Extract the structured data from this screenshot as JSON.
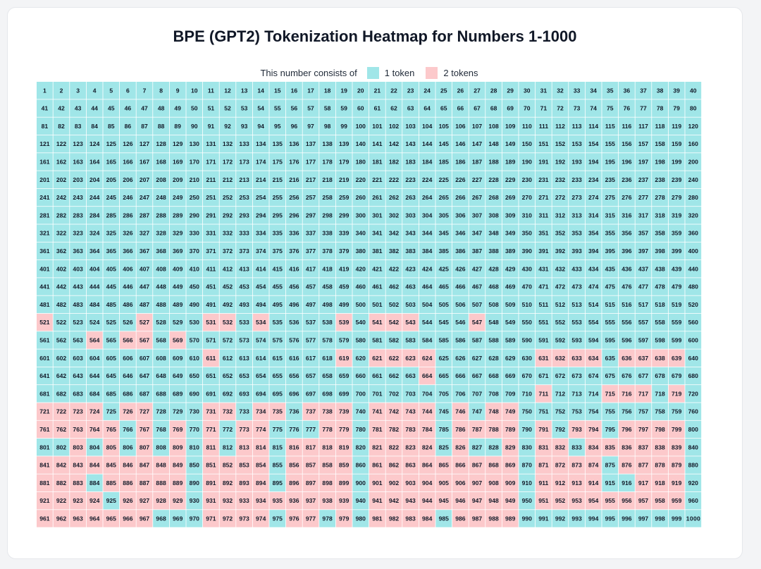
{
  "page": {
    "title": "BPE (GPT2) Tokenization Heatmap for Numbers 1-1000"
  },
  "legend": {
    "label": "This number consists of",
    "items": [
      {
        "label": "1 token",
        "color": "#a0e6e8"
      },
      {
        "label": "2 tokens",
        "color": "#fcc9cb"
      }
    ]
  },
  "chart_data": {
    "type": "heatmap",
    "title": "BPE (GPT2) Tokenization Heatmap for Numbers 1-1000",
    "range": [
      1,
      1000
    ],
    "columns": 40,
    "rows": 25,
    "colors": {
      "1": "#a0e6e8",
      "2": "#fcc9cb"
    },
    "two_token_numbers": [
      521,
      527,
      531,
      532,
      534,
      539,
      541,
      542,
      543,
      547,
      564,
      566,
      567,
      569,
      611,
      619,
      621,
      622,
      623,
      624,
      631,
      632,
      633,
      634,
      636,
      637,
      638,
      639,
      664,
      711,
      715,
      716,
      717,
      719,
      721,
      722,
      723,
      724,
      726,
      727,
      731,
      732,
      734,
      735,
      737,
      738,
      739,
      741,
      742,
      743,
      744,
      746,
      748,
      749,
      761,
      762,
      763,
      764,
      765,
      767,
      769,
      771,
      773,
      774,
      778,
      779,
      781,
      782,
      783,
      784,
      786,
      787,
      788,
      789,
      791,
      793,
      794,
      796,
      797,
      798,
      799,
      803,
      805,
      807,
      809,
      811,
      813,
      814,
      816,
      817,
      818,
      819,
      821,
      822,
      823,
      824,
      826,
      829,
      831,
      832,
      834,
      835,
      836,
      837,
      838,
      839,
      841,
      842,
      843,
      844,
      845,
      846,
      847,
      848,
      849,
      851,
      852,
      853,
      854,
      856,
      857,
      858,
      859,
      861,
      862,
      863,
      864,
      865,
      866,
      867,
      868,
      869,
      871,
      872,
      873,
      874,
      876,
      877,
      878,
      879,
      881,
      882,
      883,
      885,
      886,
      887,
      888,
      889,
      891,
      892,
      893,
      894,
      896,
      897,
      898,
      899,
      901,
      902,
      903,
      904,
      905,
      906,
      907,
      908,
      909,
      911,
      912,
      913,
      914,
      917,
      918,
      919,
      921,
      922,
      923,
      924,
      926,
      927,
      928,
      929,
      931,
      932,
      933,
      934,
      935,
      936,
      937,
      938,
      939,
      941,
      942,
      943,
      944,
      945,
      946,
      947,
      948,
      949,
      951,
      952,
      953,
      954,
      955,
      956,
      957,
      958,
      959,
      961,
      962,
      963,
      964,
      965,
      966,
      967,
      971,
      972,
      973,
      974,
      976,
      977,
      979,
      981,
      982,
      983,
      984,
      986,
      987,
      988,
      989
    ]
  }
}
